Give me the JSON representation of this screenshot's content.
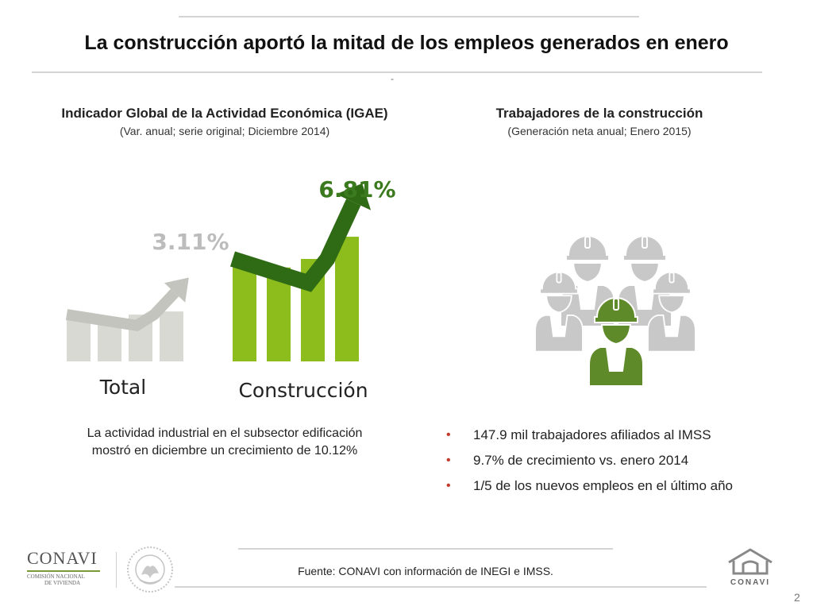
{
  "title": "La construcción aportó la mitad de los empleos generados en enero",
  "title_mark": "-",
  "left": {
    "title": "Indicador Global de la Actividad Económica (IGAE)",
    "subtitle": "(Var. anual; serie original; Diciembre 2014)",
    "note_line1": "La actividad industrial en el subsector edificación",
    "note_line2": "mostró en diciembre un crecimiento de 10.12%"
  },
  "right": {
    "title": "Trabajadores de la construcción",
    "subtitle": "(Generación neta anual; Enero 2015)",
    "bullets": [
      "147.9 mil trabajadores afiliados al IMSS",
      "9.7% de crecimiento vs. enero 2014",
      "1/5 de los nuevos empleos en el último año"
    ]
  },
  "chart_data": {
    "type": "bar",
    "title": "Indicador Global de la Actividad Económica (IGAE)",
    "subtitle": "(Var. anual; serie original; Diciembre 2014)",
    "categories": [
      "Total",
      "Construcción"
    ],
    "values": [
      3.11,
      6.81
    ],
    "value_labels": [
      "3.11%",
      "6.81%"
    ],
    "unit": "%",
    "colors": [
      "#d9d9d3",
      "#8cbd1c"
    ],
    "arrow_colors": [
      "#c4c4be",
      "#2f6a14"
    ],
    "label_colors": [
      "#bcbcbc",
      "#3b7a1e"
    ]
  },
  "footer": {
    "source": "Fuente: CONAVI con información de INEGI e IMSS.",
    "page": "2",
    "logo_left_text": "CONAVI",
    "logo_left_sub1": "COMISIÓN NACIONAL",
    "logo_left_sub2": "DE VIVIENDA",
    "logo_right_text": "CONAVI"
  },
  "colors": {
    "accent_green": "#5f8a2a",
    "worker_gray": "#c8c8c8",
    "bullet_red": "#c0392b"
  }
}
